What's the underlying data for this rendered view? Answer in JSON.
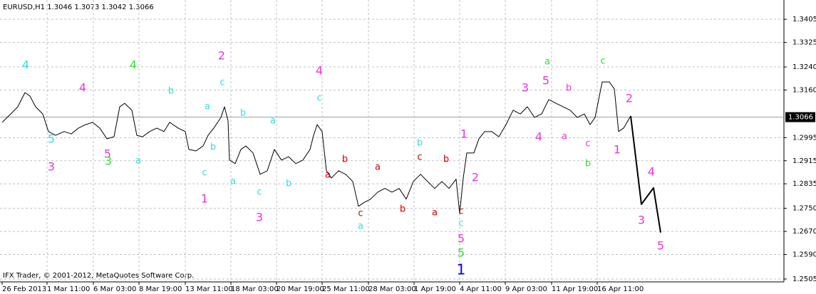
{
  "chart_data": {
    "type": "line",
    "title": "EURUSD,H1  1.3046 1.3073 1.3042 1.3066",
    "footer": "IFX Trader, © 2001-2012, MetaQuotes Software Corp.",
    "last_price": 1.3066,
    "grid": true,
    "xlim": [
      0,
      1100
    ],
    "xticks": [
      {
        "value": 3,
        "label": "26 Feb 2013"
      },
      {
        "value": 66,
        "label": "1 Mar 11:00"
      },
      {
        "value": 131,
        "label": "6 Mar 03:00"
      },
      {
        "value": 195,
        "label": "8 Mar 19:00"
      },
      {
        "value": 260,
        "label": "13 Mar 11:00"
      },
      {
        "value": 324,
        "label": "18 Mar 03:00"
      },
      {
        "value": 388,
        "label": "20 Mar 19:00"
      },
      {
        "value": 452,
        "label": "25 Mar 11:00"
      },
      {
        "value": 517,
        "label": "28 Mar 03:00"
      },
      {
        "value": 581,
        "label": "1 Apr 19:00"
      },
      {
        "value": 645,
        "label": "4 Apr 11:00"
      },
      {
        "value": 709,
        "label": "9 Apr 03:00"
      },
      {
        "value": 774,
        "label": "11 Apr 19:00"
      },
      {
        "value": 838,
        "label": "16 Apr 11:00"
      }
    ],
    "ylim": [
      1.2495,
      1.3472
    ],
    "yticks": [
      {
        "value": 1.3405,
        "label": "1.3405"
      },
      {
        "value": 1.3325,
        "label": "1.3325"
      },
      {
        "value": 1.324,
        "label": "1.3240"
      },
      {
        "value": 1.316,
        "label": "1.3160"
      },
      {
        "value": 1.2995,
        "label": "1.2995"
      },
      {
        "value": 1.2915,
        "label": "1.2915"
      },
      {
        "value": 1.2835,
        "label": "1.2835"
      },
      {
        "value": 1.275,
        "label": "1.2750"
      },
      {
        "value": 1.267,
        "label": "1.2670"
      },
      {
        "value": 1.259,
        "label": "1.2590"
      },
      {
        "value": 1.2505,
        "label": "1.2505"
      }
    ],
    "series": [
      {
        "color": "#000000",
        "x": [
          3,
          15,
          25,
          35,
          42,
          50,
          60,
          68,
          78,
          90,
          100,
          110,
          120,
          130,
          140,
          150,
          160,
          168,
          175,
          185,
          192,
          200,
          210,
          220,
          230,
          238,
          250,
          260,
          265,
          275,
          285,
          292,
          300,
          310,
          315,
          320,
          322,
          330,
          338,
          345,
          355,
          365,
          375,
          385,
          395,
          405,
          415,
          425,
          435,
          440,
          445,
          452,
          458,
          465,
          475,
          485,
          495,
          503,
          510,
          520,
          530,
          540,
          550,
          560,
          570,
          580,
          590,
          600,
          610,
          620,
          630,
          640,
          645,
          650,
          655,
          665,
          672,
          680,
          690,
          700,
          710,
          720,
          730,
          740,
          750,
          760,
          770,
          780,
          790,
          800,
          810,
          820,
          828,
          835,
          845,
          855,
          862,
          868,
          875,
          885
        ],
        "values": [
          1.3048,
          1.3077,
          1.3102,
          1.3151,
          1.3139,
          1.3102,
          1.3077,
          1.3016,
          1.3003,
          1.3016,
          1.3008,
          1.3028,
          1.304,
          1.3048,
          1.3028,
          1.2991,
          1.2998,
          1.3102,
          1.3114,
          1.309,
          1.3003,
          1.2998,
          1.3016,
          1.3028,
          1.3016,
          1.3048,
          1.3028,
          1.3016,
          1.2954,
          1.2949,
          1.2966,
          1.3003,
          1.3028,
          1.3065,
          1.3102,
          1.3053,
          1.2917,
          1.2905,
          1.2954,
          1.2966,
          1.2942,
          1.2868,
          1.288,
          1.2954,
          1.2917,
          1.2929,
          1.2905,
          1.2917,
          1.2954,
          1.3003,
          1.304,
          1.3016,
          1.288,
          1.2855,
          1.288,
          1.2868,
          1.2843,
          1.2757,
          1.2769,
          1.2782,
          1.2806,
          1.2819,
          1.2806,
          1.2819,
          1.2782,
          1.2843,
          1.2868,
          1.2843,
          1.2819,
          1.2843,
          1.2819,
          1.2851,
          1.2732,
          1.2855,
          1.2942,
          1.2942,
          1.2991,
          1.3016,
          1.3016,
          1.2998,
          1.304,
          1.309,
          1.3077,
          1.3102,
          1.3065,
          1.3077,
          1.3127,
          1.3114,
          1.3102,
          1.309,
          1.3065,
          1.3077,
          1.304,
          1.3065,
          1.3188,
          1.3188,
          1.3164,
          1.3016,
          1.3028,
          1.307
        ]
      },
      {
        "color": "#000000",
        "x": [
          885,
          900,
          917,
          927
        ],
        "values": [
          1.307,
          1.2764,
          1.2821,
          1.2666
        ]
      }
    ],
    "annotations": [
      {
        "text": "4",
        "color": "#33dddd"
      },
      {
        "text": "4",
        "color": "#ee33dd"
      },
      {
        "text": "4",
        "color": "#33dd33"
      },
      {
        "text": "2",
        "color": "#ee33dd"
      },
      {
        "text": "4",
        "color": "#ee33dd"
      },
      {
        "text": "5",
        "color": "#33dddd"
      },
      {
        "text": "3",
        "color": "#ee33dd"
      },
      {
        "text": "5",
        "color": "#ee33dd"
      },
      {
        "text": "3",
        "color": "#33dd33"
      },
      {
        "text": "a",
        "color": "#33dddd"
      },
      {
        "text": "b",
        "color": "#33dddd"
      },
      {
        "text": "a",
        "color": "#33dddd"
      },
      {
        "text": "c",
        "color": "#33dddd"
      },
      {
        "text": "b",
        "color": "#33dddd"
      },
      {
        "text": "a",
        "color": "#33dddd"
      },
      {
        "text": "c",
        "color": "#33dddd"
      },
      {
        "text": "b",
        "color": "#33dddd"
      },
      {
        "text": "c",
        "color": "#33dddd"
      },
      {
        "text": "1",
        "color": "#ee33dd"
      },
      {
        "text": "a",
        "color": "#33dddd"
      },
      {
        "text": "c",
        "color": "#33dddd"
      },
      {
        "text": "3",
        "color": "#ee33dd"
      },
      {
        "text": "b",
        "color": "#33dddd"
      },
      {
        "text": "b",
        "color": "#cc0000"
      },
      {
        "text": "a",
        "color": "#cc0000"
      },
      {
        "text": "a",
        "color": "#cc0000"
      },
      {
        "text": "c",
        "color": "#cc0000"
      },
      {
        "text": "a",
        "color": "#33dddd"
      },
      {
        "text": "b",
        "color": "#cc0000"
      },
      {
        "text": "a",
        "color": "#cc0000"
      },
      {
        "text": "b",
        "color": "#33dddd"
      },
      {
        "text": "c",
        "color": "#cc0000"
      },
      {
        "text": "b",
        "color": "#cc0000"
      },
      {
        "text": "c",
        "color": "#cc0000"
      },
      {
        "text": "c",
        "color": "#33dddd"
      },
      {
        "text": "5",
        "color": "#ee33dd"
      },
      {
        "text": "5",
        "color": "#33dd33"
      },
      {
        "text": "1",
        "color": "#0000ff"
      },
      {
        "text": "1",
        "color": "#ee33dd"
      },
      {
        "text": "2",
        "color": "#ee33dd"
      },
      {
        "text": "3",
        "color": "#ee33dd"
      },
      {
        "text": "5",
        "color": "#ee33dd"
      },
      {
        "text": "a",
        "color": "#33dd33"
      },
      {
        "text": "b",
        "color": "#ee33dd"
      },
      {
        "text": "4",
        "color": "#ee33dd"
      },
      {
        "text": "a",
        "color": "#ee33dd"
      },
      {
        "text": "c",
        "color": "#ee33dd"
      },
      {
        "text": "b",
        "color": "#33dd33"
      },
      {
        "text": "c",
        "color": "#33dd33"
      },
      {
        "text": "2",
        "color": "#ee33dd"
      },
      {
        "text": "1",
        "color": "#ee33dd"
      },
      {
        "text": "4",
        "color": "#ee33dd"
      },
      {
        "text": "3",
        "color": "#ee33dd"
      },
      {
        "text": "5",
        "color": "#ee33dd"
      }
    ]
  }
}
